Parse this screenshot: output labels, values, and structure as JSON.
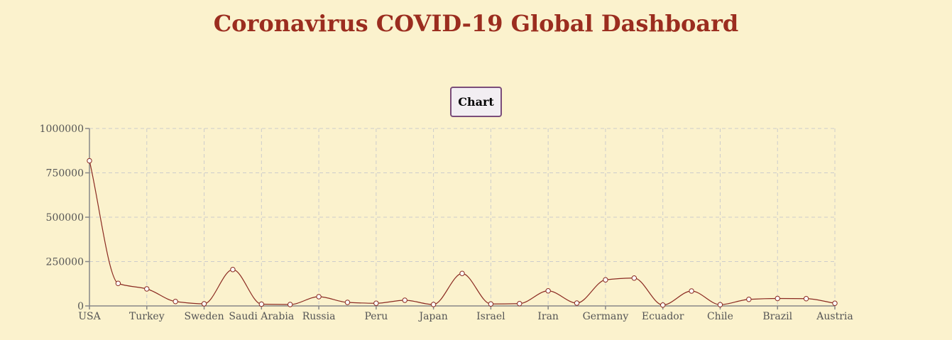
{
  "page": {
    "title": "Coronavirus COVID-19 Global Dashboard",
    "chart_button_label": "Chart"
  },
  "colors": {
    "background": "#fbf2cd",
    "title": "#9b2d1f",
    "line": "#8b2b22"
  },
  "chart_data": {
    "type": "line",
    "title": "",
    "xlabel": "",
    "ylabel": "",
    "ylim": [
      0,
      1000000
    ],
    "yticks": [
      0,
      250000,
      500000,
      750000,
      1000000
    ],
    "grid": true,
    "curve": "smooth",
    "x_tick_labels": [
      "USA",
      "Turkey",
      "Sweden",
      "Saudi Arabia",
      "Russia",
      "Peru",
      "Japan",
      "Israel",
      "Iran",
      "Germany",
      "Ecuador",
      "Chile",
      "Brazil",
      "Austria"
    ],
    "categories": [
      "USA",
      "",
      "Turkey",
      "",
      "Sweden",
      "",
      "Saudi Arabia",
      "",
      "Russia",
      "",
      "Peru",
      "",
      "Japan",
      "",
      "Israel",
      "",
      "Iran",
      "",
      "Germany",
      "",
      "Ecuador",
      "",
      "Chile",
      "",
      "Brazil",
      "",
      "Austria"
    ],
    "values": [
      818000,
      127000,
      96000,
      25000,
      12000,
      205000,
      10000,
      8000,
      52000,
      20000,
      15000,
      32000,
      8000,
      183000,
      11000,
      13000,
      85000,
      16000,
      147000,
      157000,
      5000,
      84000,
      7000,
      37000,
      42000,
      41000,
      15000
    ]
  }
}
